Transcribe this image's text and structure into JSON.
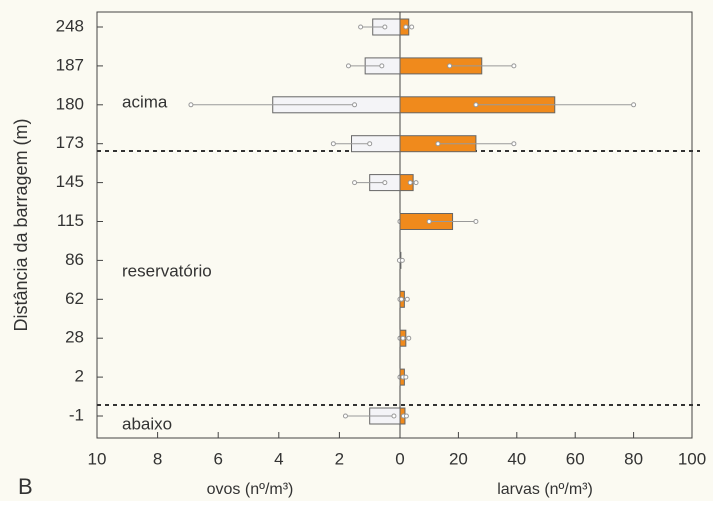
{
  "chart_data": {
    "type": "bar",
    "orientation": "horizontal",
    "panel_label": "B",
    "ylabel": "Distância da barragem (m)",
    "categories": [
      "248",
      "187",
      "180",
      "173",
      "145",
      "115",
      "86",
      "62",
      "28",
      "2",
      "-1"
    ],
    "annotations": [
      "acima",
      "reservatório",
      "abaixo"
    ],
    "series": [
      {
        "name": "ovos (nº/m³)",
        "color": "#f4f4f7",
        "values": [
          0.9,
          1.15,
          4.2,
          1.6,
          1.0,
          0,
          0,
          0,
          0,
          0,
          1.0
        ],
        "errors": [
          0.4,
          0.55,
          2.7,
          0.6,
          0.5,
          0,
          0,
          0,
          0,
          0,
          0.8
        ],
        "xlim": [
          10,
          0
        ],
        "xticks": [
          10,
          8,
          6,
          4,
          2,
          0
        ]
      },
      {
        "name": "larvas (nº/m³)",
        "color": "#f08a1c",
        "values": [
          3,
          28,
          53,
          26,
          4.5,
          18,
          0.3,
          1.5,
          2,
          1.5,
          1.7
        ],
        "errors": [
          1,
          11,
          27,
          13,
          1,
          8,
          0.5,
          1,
          1,
          0.5,
          0.5
        ],
        "xlim": [
          0,
          100
        ],
        "xticks": [
          20,
          40,
          60,
          80,
          100
        ]
      }
    ]
  }
}
